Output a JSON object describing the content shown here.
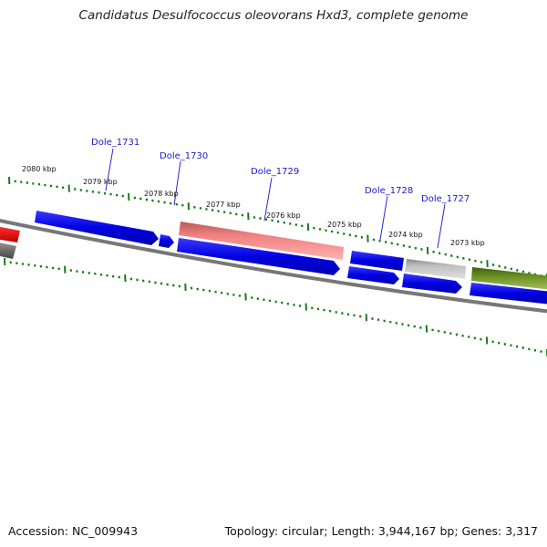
{
  "title": "Candidatus Desulfococcus oleovorans Hxd3, complete genome",
  "accession": "Accession: NC_009943",
  "summary": "Topology: circular; Length: 3,944,167 bp; Genes: 3,317",
  "scale_labels": [
    "2080 kbp",
    "2079 kbp",
    "2078 kbp",
    "2077 kbp",
    "2076 kbp",
    "2075 kbp",
    "2074 kbp",
    "2073 kbp"
  ],
  "gene_labels": [
    "Dole_1731",
    "Dole_1730",
    "Dole_1729",
    "Dole_1728",
    "Dole_1727"
  ],
  "colors": {
    "cds_blue": "#0000dd",
    "pink": "#f08080",
    "gray": "#b8b8b8",
    "olive": "#6b8e23",
    "red": "#ee0000",
    "backbone": "#777777",
    "tick": "#1a7a1a",
    "label": "#1a1acc"
  }
}
